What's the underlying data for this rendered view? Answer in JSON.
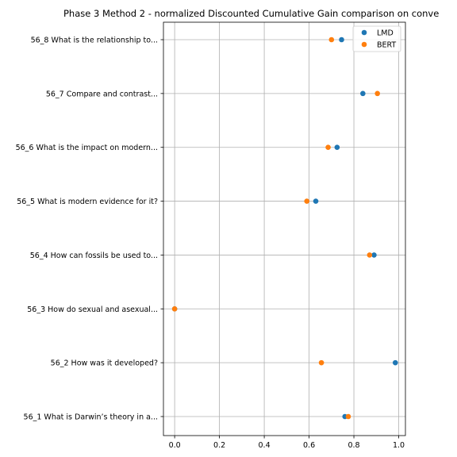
{
  "chart_data": {
    "type": "scatter",
    "title": "Phase 3 Method 2 - normalized Discounted Cumulative Gain comparison on conve",
    "xlabel": "",
    "ylabel": "",
    "xlim": [
      -0.05,
      1.03
    ],
    "xticks": [
      "0.0",
      "0.2",
      "0.4",
      "0.6",
      "0.8",
      "1.0"
    ],
    "grid": true,
    "legend_position": "top-right",
    "categories": [
      "56_8 What is the relationship to...",
      "56_7 Compare and contrast...",
      "56_6 What is the impact on modern...",
      "56_5 What is modern evidence for it?",
      "56_4 How can fossils be used to...",
      "56_3 How do sexual and asexual...",
      "56_2 How was it developed?",
      "56_1 What is Darwin’s theory in a..."
    ],
    "series": [
      {
        "name": "LMD",
        "color": "#1f77b4",
        "values": [
          0.745,
          0.84,
          0.725,
          0.63,
          0.89,
          0.0,
          0.985,
          0.76
        ]
      },
      {
        "name": "BERT",
        "color": "#ff7f0e",
        "values": [
          0.7,
          0.905,
          0.685,
          0.59,
          0.87,
          0.0,
          0.655,
          0.775
        ]
      }
    ]
  }
}
